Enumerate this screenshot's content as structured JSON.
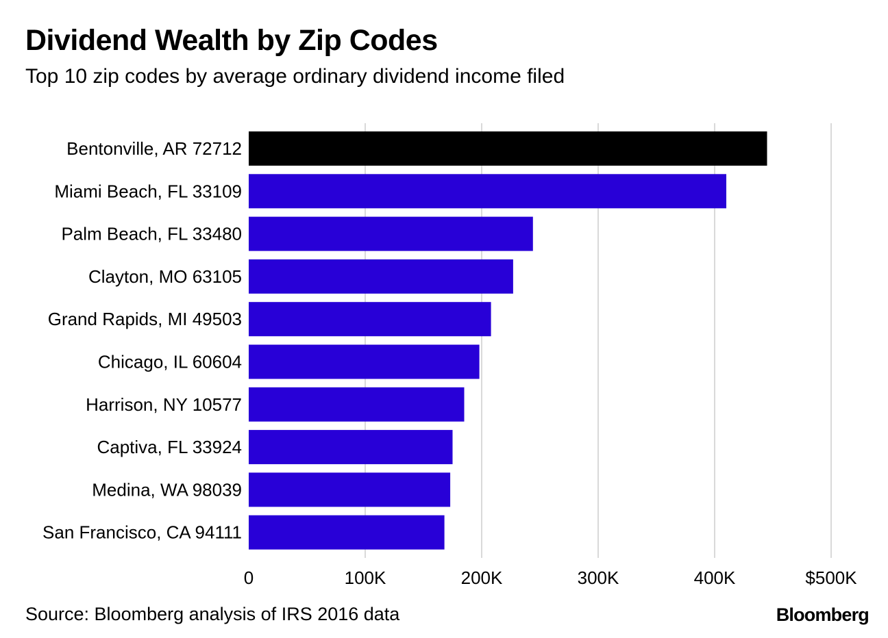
{
  "header": {
    "title": "Dividend Wealth by Zip Codes",
    "subtitle": "Top 10 zip codes by average ordinary dividend income filed"
  },
  "footer": {
    "source": "Source: Bloomberg analysis of IRS 2016 data",
    "brand": "Bloomberg"
  },
  "colors": {
    "highlight_bar": "#000000",
    "bar": "#2800d7",
    "gridline": "#d9d9d9"
  },
  "chart_data": {
    "type": "bar",
    "orientation": "horizontal",
    "title": "Dividend Wealth by Zip Codes",
    "subtitle": "Top 10 zip codes by average ordinary dividend income filed",
    "xlabel": "",
    "ylabel": "",
    "xlim": [
      0,
      500000
    ],
    "grid": true,
    "ticks": [
      {
        "value": 0,
        "label": "0"
      },
      {
        "value": 100000,
        "label": "100K"
      },
      {
        "value": 200000,
        "label": "200K"
      },
      {
        "value": 300000,
        "label": "300K"
      },
      {
        "value": 400000,
        "label": "400K"
      },
      {
        "value": 500000,
        "label": "$500K"
      }
    ],
    "categories": [
      "Bentonville, AR 72712",
      "Miami Beach, FL 33109",
      "Palm Beach, FL 33480",
      "Clayton, MO 63105",
      "Grand Rapids, MI 49503",
      "Chicago, IL 60604",
      "Harrison, NY 10577",
      "Captiva, FL 33924",
      "Medina, WA 98039",
      "San Francisco, CA 94111"
    ],
    "values": [
      445000,
      410000,
      244000,
      227000,
      208000,
      198000,
      185000,
      175000,
      173000,
      168000
    ],
    "highlight_index": 0
  }
}
